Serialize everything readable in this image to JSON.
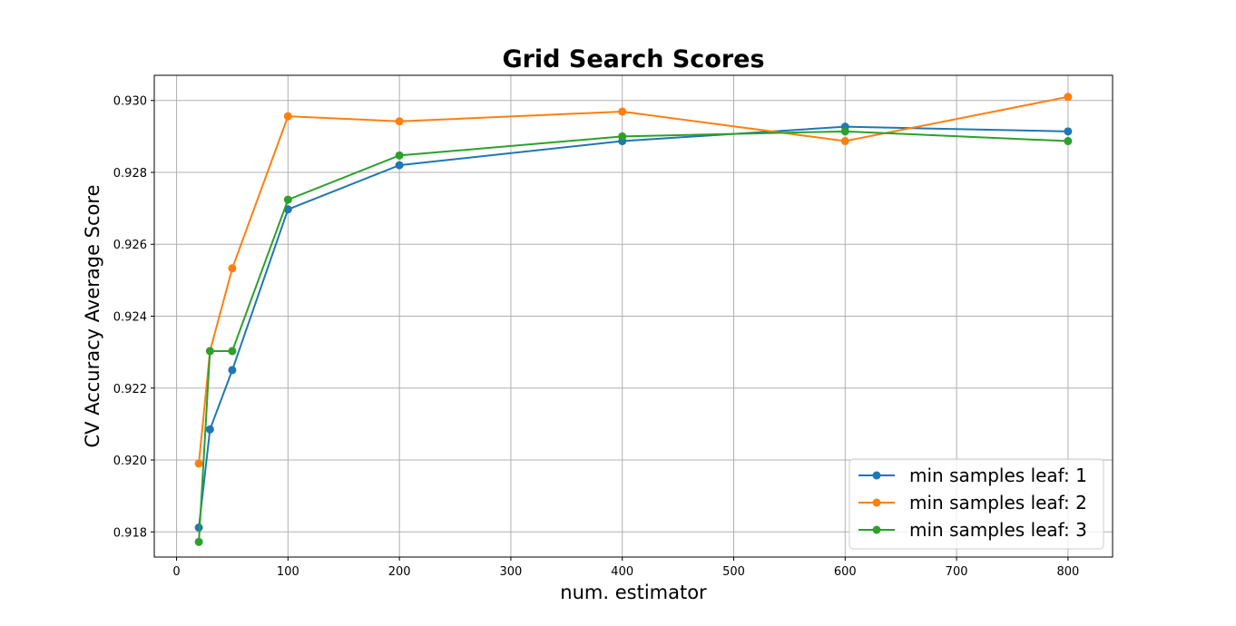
{
  "chart_data": {
    "type": "line",
    "title": "Grid Search Scores",
    "xlabel": "num. estimator",
    "ylabel": "CV Accuracy Average Score",
    "xlim": [
      -20,
      840
    ],
    "ylim": [
      0.9173,
      0.9307
    ],
    "xticks": [
      0,
      100,
      200,
      300,
      400,
      500,
      600,
      700,
      800
    ],
    "xtick_labels": [
      "0",
      "100",
      "200",
      "300",
      "400",
      "500",
      "600",
      "700",
      "800"
    ],
    "yticks": [
      0.918,
      0.92,
      0.922,
      0.924,
      0.926,
      0.928,
      0.93
    ],
    "ytick_labels": [
      "0.918",
      "0.920",
      "0.922",
      "0.924",
      "0.926",
      "0.928",
      "0.930"
    ],
    "grid": true,
    "legend_position": "lower-right",
    "x": [
      20,
      30,
      50,
      100,
      200,
      400,
      600,
      800
    ],
    "series": [
      {
        "name": "min samples leaf: 1",
        "color": "#1f77b4",
        "values": [
          0.91812,
          0.92085,
          0.9225,
          0.92697,
          0.9282,
          0.92887,
          0.92927,
          0.92914
        ]
      },
      {
        "name": "min samples leaf: 2",
        "color": "#ff7f0e",
        "values": [
          0.9199,
          0.92303,
          0.92533,
          0.92956,
          0.92942,
          0.92969,
          0.92887,
          0.9301
        ]
      },
      {
        "name": "min samples leaf: 3",
        "color": "#2ca02c",
        "values": [
          0.91772,
          0.92303,
          0.92303,
          0.92724,
          0.92847,
          0.929,
          0.92914,
          0.92887
        ]
      }
    ]
  }
}
